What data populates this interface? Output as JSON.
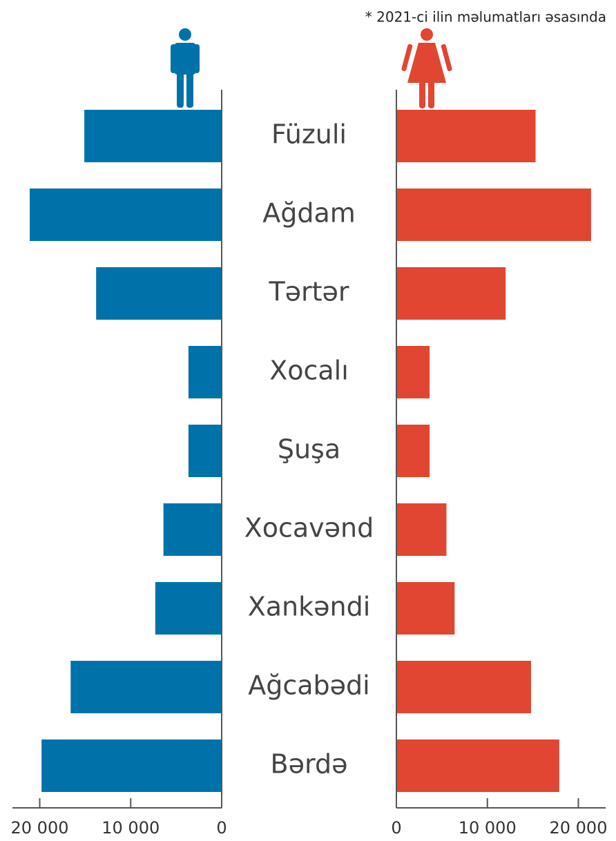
{
  "chart_data": {
    "type": "butterfly",
    "note": "* 2021-ci ilin məlumatları əsasında",
    "categories": [
      "Füzuli",
      "Ağdam",
      "Tərtər",
      "Xocalı",
      "Şuşa",
      "Xocavənd",
      "Xankəndi",
      "Ağcabədi",
      "Bərdə"
    ],
    "series": [
      {
        "color": "#0072aa",
        "values": [
          15100,
          21100,
          13800,
          3650,
          3650,
          6400,
          7300,
          16600,
          19800
        ]
      },
      {
        "color": "#e04632",
        "values": [
          15300,
          21400,
          12000,
          3650,
          3650,
          5500,
          6400,
          14800,
          17900
        ]
      }
    ],
    "xlim": [
      0,
      23000
    ],
    "xticks": [
      0,
      {
        "value": 10000,
        "label": "10 000"
      },
      {
        "value": 20000,
        "label": "20 000"
      }
    ]
  }
}
